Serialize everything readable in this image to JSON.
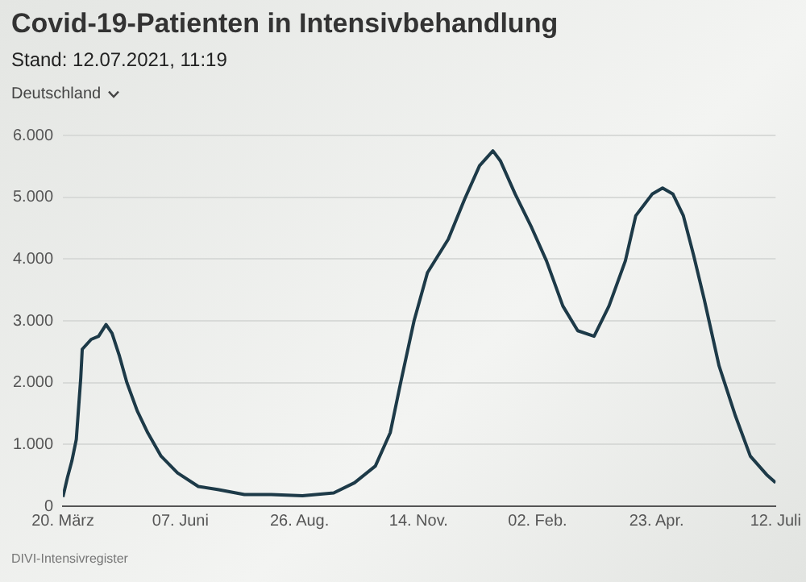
{
  "chart_data": {
    "type": "line",
    "title": "Covid-19-Patienten in Intensivbehandlung",
    "subtitle": "Stand: 12.07.2021, 11:19",
    "annotations": [
      "Deutschland",
      "DIVI-Intensivregister"
    ],
    "x": [
      "2020-03-20",
      "2020-03-23",
      "2020-03-26",
      "2020-03-29",
      "2020-04-01",
      "2020-04-02",
      "2020-04-08",
      "2020-04-13",
      "2020-04-18",
      "2020-04-22",
      "2020-04-27",
      "2020-05-02",
      "2020-05-09",
      "2020-05-16",
      "2020-05-25",
      "2020-06-05",
      "2020-06-19",
      "2020-07-02",
      "2020-07-20",
      "2020-08-07",
      "2020-08-28",
      "2020-09-18",
      "2020-10-02",
      "2020-10-16",
      "2020-10-26",
      "2020-11-02",
      "2020-11-11",
      "2020-11-20",
      "2020-12-04",
      "2020-12-15",
      "2020-12-25",
      "2021-01-03",
      "2021-01-08",
      "2021-01-18",
      "2021-01-29",
      "2021-02-08",
      "2021-02-19",
      "2021-03-01",
      "2021-03-12",
      "2021-03-22",
      "2021-04-02",
      "2021-04-09",
      "2021-04-20",
      "2021-04-27",
      "2021-05-04",
      "2021-05-11",
      "2021-05-18",
      "2021-05-25",
      "2021-06-04",
      "2021-06-15",
      "2021-06-25",
      "2021-07-06",
      "2021-07-12"
    ],
    "series": [
      {
        "color": "#1d3a48",
        "values": [
          150,
          460,
          730,
          1080,
          2080,
          2540,
          2700,
          2750,
          2940,
          2800,
          2430,
          2000,
          1540,
          1190,
          810,
          540,
          320,
          270,
          190,
          190,
          170,
          215,
          380,
          650,
          1190,
          2000,
          3000,
          3780,
          4320,
          4970,
          5510,
          5750,
          5590,
          5050,
          4510,
          3970,
          3240,
          2840,
          2750,
          3240,
          3970,
          4700,
          5050,
          5150,
          5050,
          4700,
          4050,
          3350,
          2270,
          1460,
          810,
          510,
          380
        ]
      }
    ],
    "xlim": [
      "2020-03-20",
      "2021-07-12"
    ],
    "xticks": [
      {
        "value": "2020-03-20",
        "label": "20. März"
      },
      {
        "value": "2020-06-07",
        "label": "07. Juni"
      },
      {
        "value": "2020-08-26",
        "label": "26. Aug."
      },
      {
        "value": "2020-11-14",
        "label": "14. Nov."
      },
      {
        "value": "2021-02-02",
        "label": "02. Feb."
      },
      {
        "value": "2021-04-23",
        "label": "23. Apr."
      },
      {
        "value": "2021-07-12",
        "label": "12. Juli"
      }
    ],
    "ylim": [
      0,
      6000
    ],
    "yticks": [
      {
        "value": 0,
        "label": "0"
      },
      {
        "value": 1000,
        "label": "1.000"
      },
      {
        "value": 2000,
        "label": "2.000"
      },
      {
        "value": 3000,
        "label": "3.000"
      },
      {
        "value": 4000,
        "label": "4.000"
      },
      {
        "value": 5000,
        "label": "5.000"
      },
      {
        "value": 6000,
        "label": "6.000"
      }
    ],
    "grid": "y",
    "legend": false,
    "marker": "none",
    "line_style": "solid"
  }
}
